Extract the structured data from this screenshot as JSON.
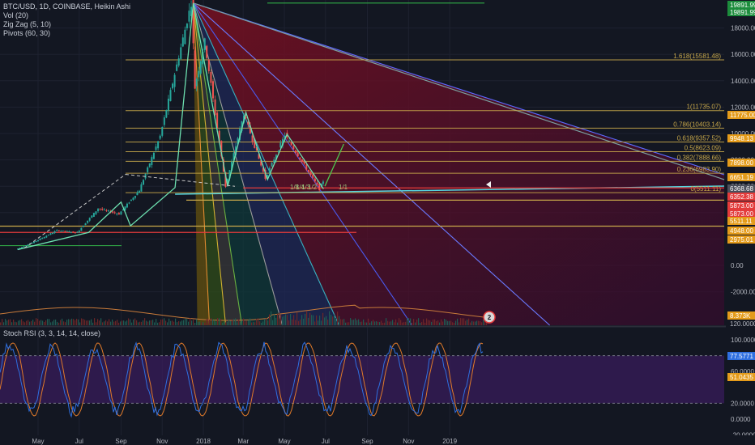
{
  "header": {
    "symbol_line": "BTC/USD, 1D, COINBASE, Heikin Ashi",
    "indicators": [
      "Vol (20)",
      "Zig Zag (5, 10)",
      "Pivots (60, 30)"
    ]
  },
  "stoch_label": "Stoch RSI (3, 3, 14, 14, close)",
  "colors": {
    "background": "#131722",
    "bull": "#26a69a",
    "bear": "#ef5350",
    "fib": "#c8a84a",
    "green_label": "#1c8c3c",
    "red_label": "#e33b3b",
    "orange_label": "#e49b1a",
    "stoch_k": "#2f6fe0",
    "stoch_d": "#e07a2a",
    "stoch_band": "#3a1d5e"
  },
  "chart_data": [
    {
      "type": "candlestick",
      "y_axis_labels": [
        "18000.00",
        "16000.00",
        "14000.00",
        "12000.00",
        "10000.00",
        "8000.00",
        "6000.00",
        "4000.00",
        "2000.00",
        "0.00",
        "-2000.00"
      ],
      "price_badges": [
        {
          "text": "19891.99",
          "kind": "green"
        },
        {
          "text": "19891.99",
          "kind": "green"
        },
        {
          "text": "11775.00",
          "kind": "orange"
        },
        {
          "text": "9948.13",
          "kind": "orange"
        },
        {
          "text": "7898.00",
          "kind": "orange"
        },
        {
          "text": "6651.19",
          "kind": "orange"
        },
        {
          "text": "6368.68",
          "kind": "gray"
        },
        {
          "text": "6352.38",
          "kind": "red"
        },
        {
          "text": "5873.00",
          "kind": "red"
        },
        {
          "text": "5873.00",
          "kind": "red"
        },
        {
          "text": "5511.11",
          "kind": "orange"
        },
        {
          "text": "4948.00",
          "kind": "orange"
        },
        {
          "text": "2975.01",
          "kind": "orange"
        },
        {
          "text": "8.373K",
          "kind": "orange"
        },
        {
          "text": "120.0000",
          "kind": "plain"
        }
      ],
      "fib_levels": [
        {
          "label": "1.618(15581.48)",
          "value": 15581.48
        },
        {
          "label": "1(11735.07)",
          "value": 11735.07
        },
        {
          "label": "0.786(10403.14)",
          "value": 10403.14
        },
        {
          "label": "0.618(9357.52)",
          "value": 9357.52
        },
        {
          "label": "0.5(8623.09)",
          "value": 8623.09
        },
        {
          "label": "0.382(7888.66)",
          "value": 7888.66
        },
        {
          "label": "0.236(6983.90)",
          "value": 6983.9
        },
        {
          "label": "0(5511.11)",
          "value": 5511.11
        }
      ],
      "fan_labels": [
        "1/8",
        "1/4",
        "1/3",
        "1/2",
        "1/1"
      ],
      "x_labels": [
        "May",
        "Jul",
        "Sep",
        "Nov",
        "2018",
        "Mar",
        "May",
        "Jul",
        "Sep",
        "Nov",
        "2019"
      ],
      "volume_badge": "2",
      "ohlc_path": [
        {
          "date": "2017-04",
          "price": 1200
        },
        {
          "date": "2017-05",
          "price": 1850
        },
        {
          "date": "2017-06",
          "price": 2650
        },
        {
          "date": "2017-07",
          "price": 2500
        },
        {
          "date": "2017-08",
          "price": 4300
        },
        {
          "date": "2017-09",
          "price": 3900
        },
        {
          "date": "2017-10",
          "price": 5700
        },
        {
          "date": "2017-11",
          "price": 9800
        },
        {
          "date": "2017-12-17",
          "price": 19891.99
        },
        {
          "date": "2017-12-22",
          "price": 13500
        },
        {
          "date": "2018-01-06",
          "price": 17000
        },
        {
          "date": "2018-02-06",
          "price": 6000
        },
        {
          "date": "2018-03-05",
          "price": 11500
        },
        {
          "date": "2018-04-06",
          "price": 6600
        },
        {
          "date": "2018-05-05",
          "price": 9900
        },
        {
          "date": "2018-06-25",
          "price": 5800
        },
        {
          "date": "2018-06-30",
          "price": 6400
        }
      ]
    },
    {
      "type": "line",
      "title": "Stoch RSI (3, 3, 14, 14, close)",
      "y_axis_labels": [
        "100.0000",
        "60.0000",
        "20.0000",
        "0.0000",
        "-20.0000"
      ],
      "badges": [
        {
          "text": "77.5771",
          "kind": "blue"
        },
        {
          "text": "51.0435",
          "kind": "orange"
        }
      ],
      "band": [
        20,
        80
      ],
      "series": [
        {
          "name": "K",
          "last": 77.5771
        },
        {
          "name": "D",
          "last": 51.0435
        }
      ]
    }
  ]
}
